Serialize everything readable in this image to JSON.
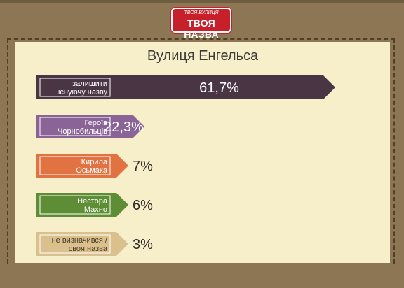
{
  "logo": {
    "top_text": "ТВОЯ ВУЛИЦЯ",
    "main_text": "ТВОЯ НАЗВА"
  },
  "chart_data": {
    "type": "bar",
    "orientation": "horizontal",
    "title": "Вулиця Енгельса",
    "categories": [
      [
        "залишити",
        "існуючу назву"
      ],
      [
        "Героїв",
        "Чорнобильців"
      ],
      [
        "Кирила",
        "Осьмака"
      ],
      [
        "Нестора",
        "Махно"
      ],
      [
        "не визначився /",
        "своя назва"
      ]
    ],
    "values": [
      61.7,
      22.3,
      7,
      6,
      3
    ],
    "value_labels": [
      "61,7%",
      "22,3%",
      "7%",
      "6%",
      "3%"
    ],
    "colors": [
      "#4a3545",
      "#8a6397",
      "#e07341",
      "#5d8d35",
      "#d9c08c"
    ],
    "xlim": [
      0,
      61.7
    ]
  }
}
